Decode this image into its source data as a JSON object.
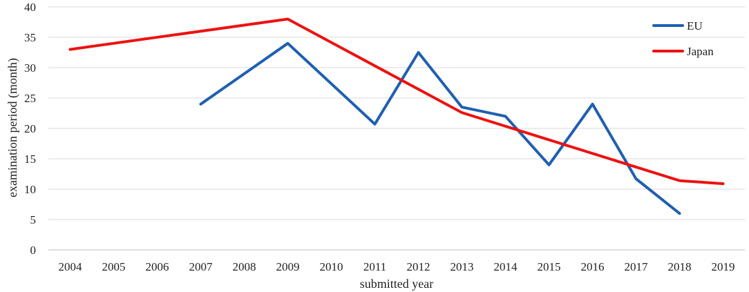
{
  "chart_data": {
    "type": "line",
    "title": "",
    "xlabel": "submitted year",
    "ylabel": "examination period (month)",
    "ylim": [
      0,
      40
    ],
    "yticks": [
      0,
      5,
      10,
      15,
      20,
      25,
      30,
      35,
      40
    ],
    "categories": [
      "2004",
      "2005",
      "2006",
      "2007",
      "2008",
      "2009",
      "2010",
      "2011",
      "2012",
      "2013",
      "2014",
      "2015",
      "2016",
      "2017",
      "2018",
      "2019"
    ],
    "grid": true,
    "legend_position": "top-right",
    "series": [
      {
        "name": "EU",
        "color": "#1f5fb0",
        "values": [
          null,
          null,
          null,
          24,
          null,
          34,
          null,
          20.7,
          32.5,
          23.5,
          22,
          14,
          24,
          11.7,
          6,
          null
        ]
      },
      {
        "name": "Japan",
        "color": "#ee1111",
        "values": [
          33,
          null,
          null,
          null,
          null,
          38,
          null,
          null,
          null,
          22.6,
          null,
          null,
          null,
          null,
          11.4,
          10.9
        ]
      }
    ]
  }
}
